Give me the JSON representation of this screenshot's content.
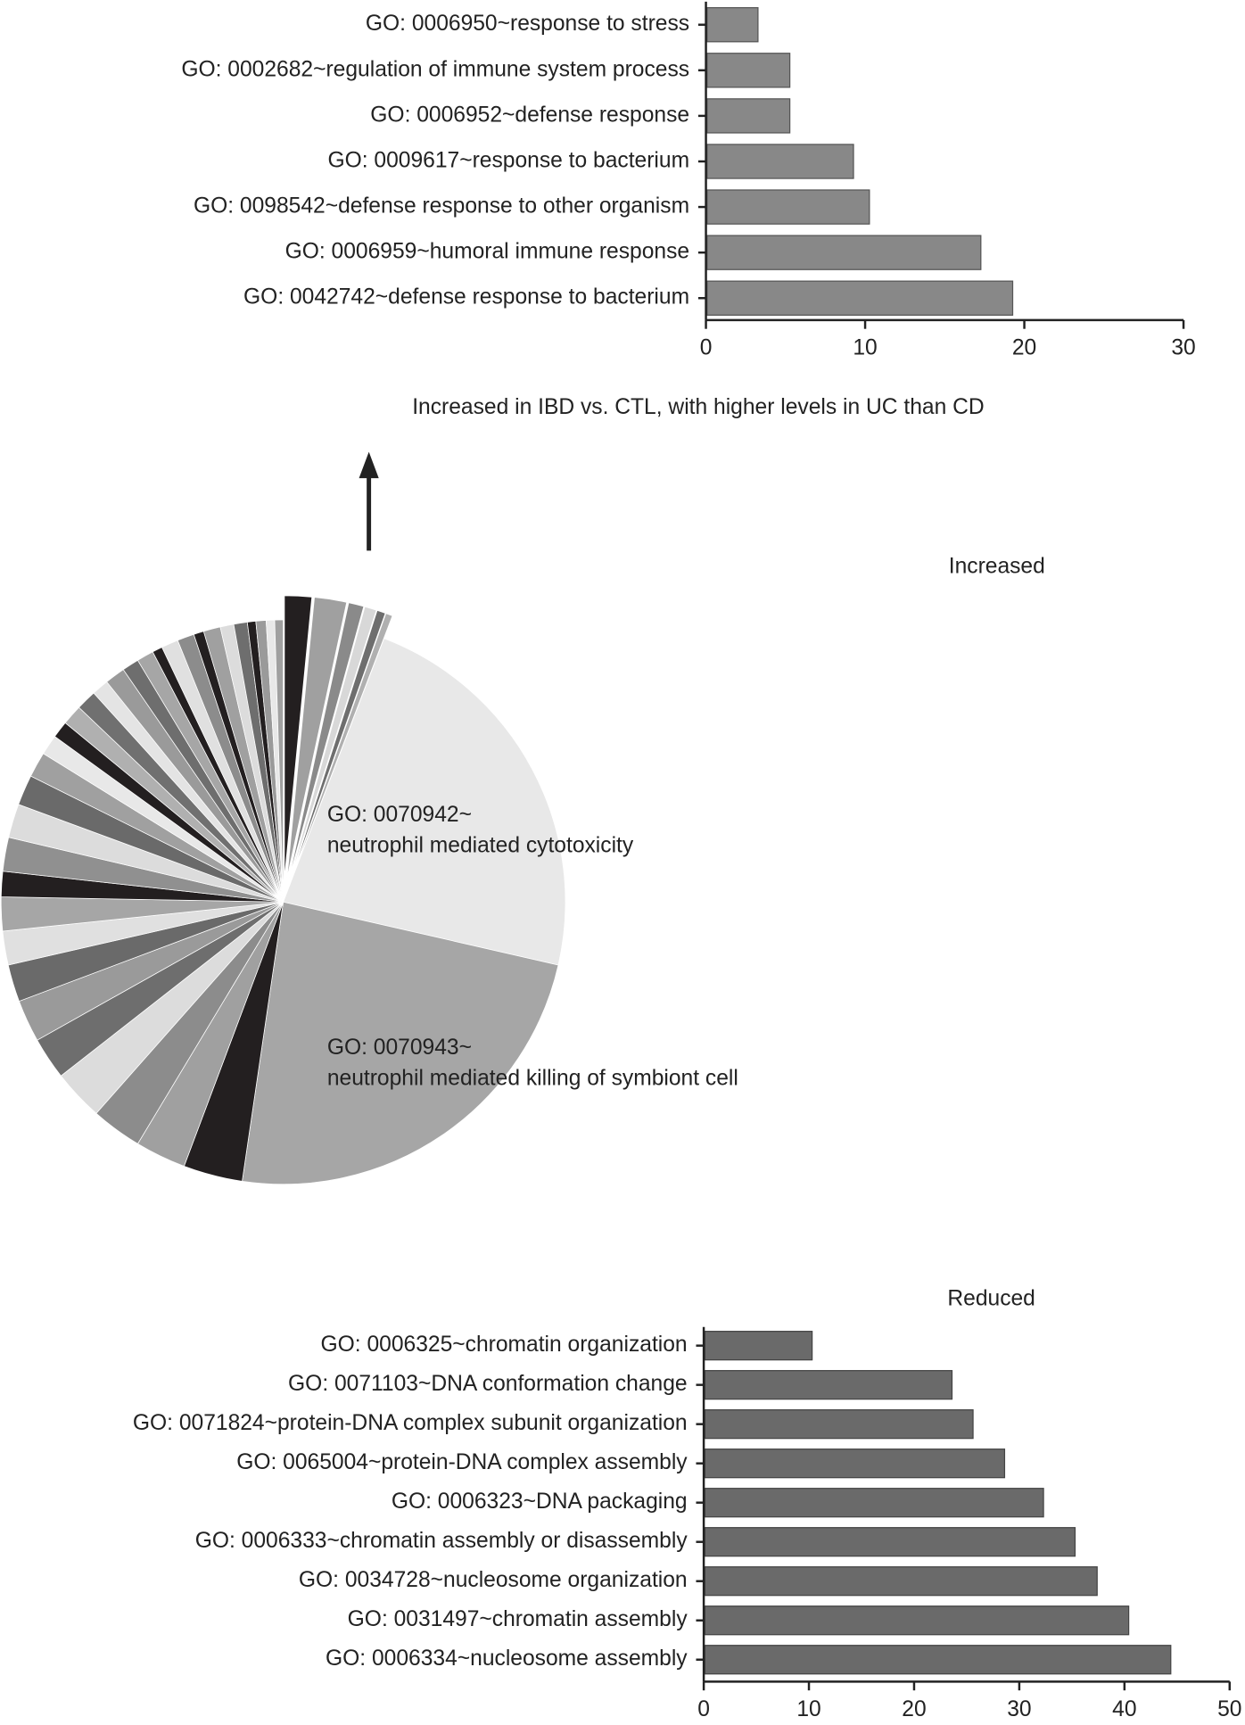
{
  "chart_data": [
    {
      "type": "bar",
      "orientation": "horizontal",
      "categories": [
        "GO: 0006950~response to stress",
        "GO: 0002682~regulation of immune system process",
        "GO: 0006952~defense response",
        "GO: 0009617~response to bacterium",
        "GO: 0098542~defense response to other organism",
        "GO: 0006959~humoral immune response",
        "GO: 0042742~defense response to bacterium"
      ],
      "values": [
        3.2,
        5.2,
        5.2,
        9.2,
        10.2,
        17.2,
        19.2
      ],
      "color": "#888888",
      "xlim": [
        0,
        30
      ],
      "xticks": [
        0,
        10,
        20,
        30
      ]
    },
    {
      "type": "pie",
      "title": "Increased",
      "annotation": "Increased in IBD vs. CTL, with higher levels in UC than CD",
      "categories": [
        null,
        null,
        null,
        null,
        null,
        null,
        "GO: 0070942~\nneutrophil mediated cytotoxicity",
        "GO: 0070943~\nneutrophil mediated killing of symbiont cell",
        null,
        null,
        null,
        null,
        null,
        null,
        null,
        null,
        null,
        null,
        null,
        null,
        null,
        null,
        null,
        null,
        null,
        null,
        null,
        null,
        null,
        null,
        null,
        null,
        null,
        null,
        null,
        null,
        null,
        null,
        null,
        null,
        null
      ],
      "values": [
        1.6,
        1.9,
        0.9,
        0.7,
        0.5,
        0.4,
        23.5,
        24.5,
        3.5,
        3,
        3,
        3,
        2.5,
        2.5,
        2.2,
        2,
        2,
        1.5,
        2,
        2,
        1.8,
        1.5,
        1.2,
        1,
        1.2,
        1.2,
        1,
        1.2,
        1,
        1,
        0.6,
        1,
        1,
        0.6,
        1,
        0.8,
        0.8,
        0.5,
        0.6,
        0.5,
        0.5
      ],
      "colors": [
        "#231f20",
        "#a0a0a0",
        "#8a8a8a",
        "#d8d8d8",
        "#6e6e6e",
        "#b0b0b0",
        "#e8e8e8",
        "#a6a6a6",
        "#231f20",
        "#a0a0a0",
        "#8c8c8c",
        "#dcdcdc",
        "#6e6e6e",
        "#9a9a9a",
        "#6a6a6a",
        "#e0e0e0",
        "#a6a6a6",
        "#231f20",
        "#909090",
        "#dcdcdc",
        "#6a6a6a",
        "#a0a0a0",
        "#e8e8e8",
        "#231f20",
        "#b0b0b0",
        "#707070",
        "#e4e4e4",
        "#9a9a9a",
        "#6e6e6e",
        "#a6a6a6",
        "#231f20",
        "#e0e0e0",
        "#8c8c8c",
        "#231f20",
        "#a0a0a0",
        "#dcdcdc",
        "#6e6e6e",
        "#231f20",
        "#9a9a9a",
        "#e8e8e8",
        "#a0a0a0"
      ],
      "exploded": [
        0,
        1,
        2,
        3,
        4,
        5
      ]
    },
    {
      "type": "bar",
      "orientation": "horizontal",
      "title": "Reduced",
      "categories": [
        "GO: 0006325~chromatin organization",
        "GO: 0071103~DNA conformation change",
        "GO: 0071824~protein-DNA complex subunit organization",
        "GO: 0065004~protein-DNA complex assembly",
        "GO: 0006323~DNA packaging",
        "GO: 0006333~chromatin assembly or disassembly",
        "GO: 0034728~nucleosome organization",
        "GO: 0031497~chromatin assembly",
        "GO: 0006334~nucleosome assembly"
      ],
      "values": [
        10.2,
        23.5,
        25.5,
        28.5,
        32.2,
        35.2,
        37.3,
        40.3,
        44.3
      ],
      "color": "#6a6a6a",
      "xlim": [
        0,
        50
      ],
      "xticks": [
        0,
        10,
        20,
        30,
        40,
        50
      ]
    }
  ]
}
